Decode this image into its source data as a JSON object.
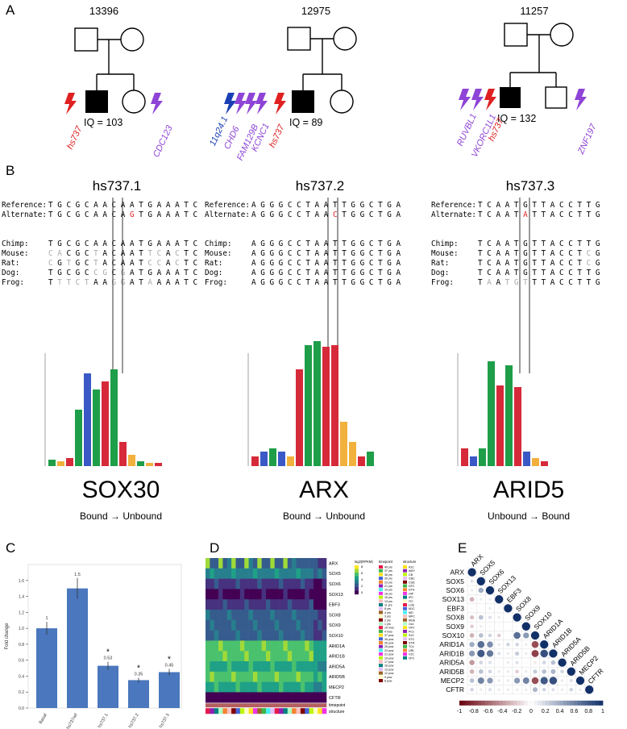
{
  "panels": {
    "a": "A",
    "b": "B",
    "c": "C",
    "d": "D",
    "e": "E"
  },
  "pedigrees": [
    {
      "id": "13396",
      "iq": "IQ = 103",
      "genes_left": [
        "hs737"
      ],
      "genes_right": [
        "CDC123"
      ]
    },
    {
      "id": "12975",
      "iq": "IQ = 89",
      "genes_left": [
        "11q24.1",
        "CHD6",
        "FAM129B",
        "KCNC1",
        "hs737"
      ]
    },
    {
      "id": "11257",
      "iq": "IQ = 132",
      "genes_left": [
        "RUVBL1",
        "VKORC1L1",
        "hs737"
      ],
      "genes_right": [
        "ZNF197"
      ]
    }
  ],
  "alignments": [
    {
      "title": "hs737.1",
      "rows": [
        {
          "label": "Reference:",
          "seq": "TGCGCAACAATGAAATC"
        },
        {
          "label": "Alternate:",
          "seq": "TGCGCAACAGTGAAATC"
        },
        {
          "label": "Chimp:",
          "seq": "TGCGCAACAATGAAATC"
        },
        {
          "label": "Mouse:",
          "seq": "CACGCTACAATTCACTC"
        },
        {
          "label": "Rat:",
          "seq": "CGTGCTACAATCCACTC"
        },
        {
          "label": "Dog:",
          "seq": "TGCGCCGCGATGAAATC"
        },
        {
          "label": "Frog:",
          "seq": "TTTCTAAGGATAAAATC"
        }
      ],
      "tf": "SOX30",
      "direction": "Bound → Unbound"
    },
    {
      "title": "hs737.2",
      "rows": [
        {
          "label": "Reference:",
          "seq": "AGGGCCTAATTGGCTGA"
        },
        {
          "label": "Alternate:",
          "seq": "AGGGCCTAACTGGCTGA"
        },
        {
          "label": "Chimp:",
          "seq": "AGGGCCTAATTGGCTGA"
        },
        {
          "label": "Mouse:",
          "seq": "AGGGCCTAATTGGCTGA"
        },
        {
          "label": "Rat:",
          "seq": "AGGGCCTAATTGGCTGA"
        },
        {
          "label": "Dog:",
          "seq": "AGGGCCTAATTGGCTGA"
        },
        {
          "label": "Frog:",
          "seq": "AGGGCCTAATTGGCTGA"
        }
      ],
      "tf": "ARX",
      "direction": "Bound → Unbound"
    },
    {
      "title": "hs737.3",
      "rows": [
        {
          "label": "Reference:",
          "seq": "TCAATGTTACCTTG"
        },
        {
          "label": "Alternate:",
          "seq": "TCAATATTACCTTG"
        },
        {
          "label": "Chimp:",
          "seq": "TCAATGTTACCTTG"
        },
        {
          "label": "Mouse:",
          "seq": "TCAATGTTACCTCG"
        },
        {
          "label": "Rat:",
          "seq": "TCAATGTTACCTCG"
        },
        {
          "label": "Dog:",
          "seq": "TCAATGTTACCTTG"
        },
        {
          "label": "Frog:",
          "seq": "TAATGTTTACCTTG"
        }
      ],
      "tf": "ARID5",
      "direction": "Unbound → Bound"
    }
  ],
  "chart_data": [
    {
      "type": "bar",
      "ylabel": "Fold change",
      "categories": [
        "Basal",
        "hs737ref",
        "hs737.1",
        "hs737.2",
        "hs737.3"
      ],
      "values": [
        1.0,
        1.5,
        0.53,
        0.35,
        0.45
      ],
      "value_labels": [
        "1",
        "1.5",
        "0.53",
        "0.35",
        "0.45"
      ],
      "significant": [
        false,
        false,
        true,
        true,
        true
      ],
      "errors": [
        0.08,
        0.13,
        0.05,
        0.03,
        0.04
      ],
      "ylim": [
        0,
        1.8
      ],
      "yticks": [
        0,
        0.2,
        0.4,
        0.6,
        0.8,
        1.0,
        1.2,
        1.4,
        1.6
      ]
    },
    {
      "type": "heatmap",
      "rows": [
        "ARX",
        "SOX5",
        "SOX6",
        "SOX13",
        "EBF3",
        "SOX8",
        "SOX9",
        "SOX10",
        "ARID1A",
        "ARID1B",
        "ARID5A",
        "ARID5B",
        "MECP2",
        "CFTR"
      ],
      "extra_rows": [
        "timepoint",
        "structure"
      ],
      "colorbar_title": "log2(RPKM)",
      "colorbar_ticks": [
        "8",
        "6",
        "4",
        "2",
        "0"
      ],
      "timepoint_title": "timepoint",
      "timepoints": [
        "8 pcw",
        "9 pcw",
        "12 pcw",
        "13 pcw",
        "16 pcw",
        "17 pcw",
        "19 pcw",
        "21 pcw",
        "24 pcw",
        "25 pcw",
        "26 pcw",
        "35 pcw",
        "37 pcw",
        "4 mos",
        "10 mos",
        "1 yrs",
        "2 yrs",
        "3 yrs",
        "4 yrs",
        "8 yrs",
        "11 yrs",
        "13 yrs",
        "15 yrs",
        "18 yrs",
        "19 yrs",
        "21 yrs",
        "23 yrs",
        "30 yrs",
        "36 yrs",
        "37 yrs",
        "40 yrs"
      ],
      "structure_title": "structure",
      "structures": [
        "A1C",
        "AMY",
        "CB",
        "CBC",
        "CGE",
        "DFC",
        "DTH",
        "HIP",
        "IPC",
        "ITC",
        "LGE",
        "M1C",
        "MD",
        "MFC",
        "MGE",
        "Ocx",
        "OFC",
        "PCx",
        "S1C",
        "STC",
        "STR",
        "TCx",
        "URL",
        "V1C",
        "VFC"
      ]
    },
    {
      "type": "heatmap",
      "labels": [
        "ARX",
        "SOX5",
        "SOX6",
        "SOX13",
        "EBF3",
        "SOX8",
        "SOX9",
        "SOX10",
        "ARID1A",
        "ARID1B",
        "ARID5A",
        "ARID5B",
        "MECP2",
        "CFTR"
      ],
      "colorbar_ticks": [
        "-1",
        "-0.8",
        "-0.6",
        "-0.4",
        "-0.2",
        "0",
        "0.2",
        "0.4",
        "0.6",
        "0.8",
        "1"
      ],
      "lower_triangle": [
        [
          1
        ],
        [
          0.15,
          1
        ],
        [
          0.1,
          0.4,
          1
        ],
        [
          -0.3,
          0.1,
          0.1,
          1
        ],
        [
          0.05,
          0,
          0.1,
          0.05,
          1
        ],
        [
          -0.25,
          0.3,
          0.15,
          -0.1,
          0,
          1
        ],
        [
          -0.2,
          0.1,
          0.05,
          -0.05,
          0,
          0.05,
          1
        ],
        [
          -0.3,
          0.3,
          0.2,
          -0.2,
          0,
          0.7,
          0.5,
          1
        ],
        [
          0.4,
          0.7,
          0.55,
          0.1,
          0.2,
          0.2,
          0.1,
          -0.7,
          1
        ],
        [
          0.5,
          0.8,
          0.65,
          0.15,
          0.1,
          0.25,
          0.1,
          -0.75,
          0.85,
          1
        ],
        [
          -0.4,
          0.2,
          0.15,
          0.05,
          0.1,
          0.15,
          0.05,
          -0.1,
          0.2,
          0.3,
          1
        ],
        [
          -0.3,
          0.3,
          0.2,
          0.1,
          0.1,
          -0.2,
          0.1,
          0.25,
          0.3,
          0.35,
          0.2,
          1
        ],
        [
          0.3,
          0.6,
          0.5,
          0.1,
          -0.1,
          0.5,
          0.6,
          -0.7,
          0.8,
          0.85,
          0.1,
          0.15,
          1
        ],
        [
          0.2,
          0.1,
          0.15,
          0.1,
          0.1,
          0.1,
          0.1,
          0.35,
          0.2,
          0.15,
          0.1,
          0.2,
          0.1,
          1
        ]
      ]
    }
  ]
}
